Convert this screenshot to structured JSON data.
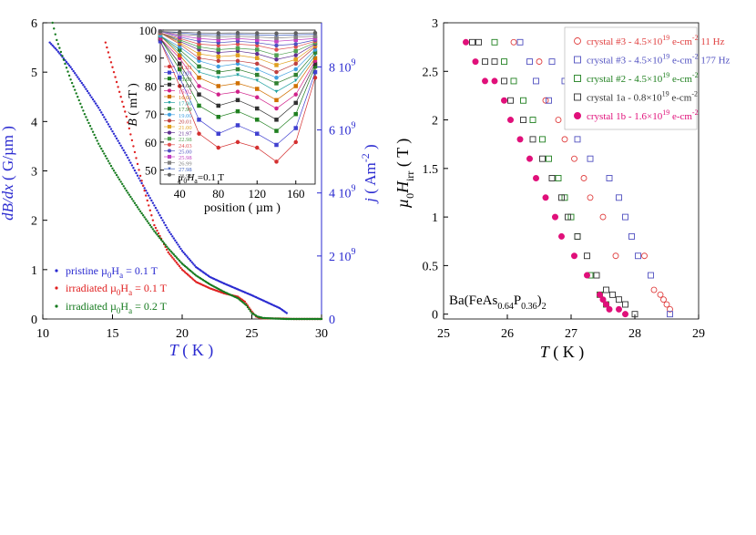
{
  "chart_data": [
    {
      "type": "scatter",
      "title": "",
      "xlabel": "T ( K )",
      "ylabel_left": "dB/dx ( G/µm )",
      "ylabel_right": "j ( Am^-2 )",
      "xlim": [
        10,
        30
      ],
      "ylim_left": [
        0,
        6
      ],
      "ylim_right": [
        0,
        9400000000.0
      ],
      "xticks": [
        "10",
        "15",
        "20",
        "25",
        "30"
      ],
      "yticks_left": [
        "0",
        "1",
        "2",
        "3",
        "4",
        "5",
        "6"
      ],
      "yticks_right": [
        {
          "base": "0",
          "exp": ""
        },
        {
          "base": "2 10",
          "exp": "9"
        },
        {
          "base": "4 10",
          "exp": "9"
        },
        {
          "base": "6 10",
          "exp": "9"
        },
        {
          "base": "8 10",
          "exp": "9"
        }
      ],
      "legend_position": "bottom-left",
      "series": [
        {
          "name": "pristine µ0Ha = 0.1 T",
          "color": "#2a2ad0",
          "x": [
            10.5,
            11,
            12,
            13,
            14,
            15,
            16,
            17,
            18,
            19,
            20,
            21,
            22,
            23,
            24,
            25,
            26,
            27,
            27.5
          ],
          "y": [
            5.6,
            5.45,
            5.1,
            4.7,
            4.28,
            3.8,
            3.32,
            2.8,
            2.3,
            1.8,
            1.38,
            1.05,
            0.85,
            0.72,
            0.6,
            0.48,
            0.35,
            0.22,
            0.12
          ]
        },
        {
          "name": "irradiated µ0Ha = 0.1 T",
          "color": "#e02020",
          "x": [
            14.5,
            15,
            16,
            17,
            18,
            19,
            20,
            21,
            22,
            23,
            24,
            24.5,
            25,
            25.3,
            25.6,
            26,
            27,
            28,
            29,
            30
          ],
          "y": [
            5.6,
            5.1,
            4.1,
            2.9,
            1.9,
            1.35,
            1.0,
            0.75,
            0.62,
            0.52,
            0.45,
            0.35,
            0.15,
            0.05,
            0.02,
            0.01,
            0.01,
            0.0,
            0.0,
            0.0
          ]
        },
        {
          "name": "irradiated µ0Ha = 0.2 T",
          "color": "#157a1e",
          "x": [
            10.7,
            11,
            12,
            13,
            14,
            15,
            16,
            17,
            18,
            19,
            20,
            21,
            22,
            23,
            24,
            24.6,
            25,
            25.4,
            25.8,
            26.5,
            27.5,
            28.5,
            30
          ],
          "y": [
            6.0,
            5.65,
            4.85,
            4.15,
            3.55,
            3.05,
            2.6,
            2.18,
            1.78,
            1.43,
            1.12,
            0.88,
            0.7,
            0.55,
            0.42,
            0.28,
            0.12,
            0.05,
            0.02,
            0.01,
            0.0,
            0.0,
            0.0
          ]
        }
      ]
    },
    {
      "type": "line",
      "title": "",
      "xlabel": "position ( µm )",
      "ylabel": "B ( mT )",
      "annotation": "µ0Ha=0.1 T",
      "xlim": [
        20,
        180
      ],
      "ylim": [
        45,
        100
      ],
      "xticks": [
        "40",
        "80",
        "120",
        "160"
      ],
      "yticks": [
        "50",
        "60",
        "70",
        "80",
        "90",
        "100"
      ],
      "x": [
        20,
        40,
        60,
        80,
        100,
        120,
        140,
        160,
        180
      ],
      "series": [
        {
          "name": "11.03",
          "color": "#d43030",
          "marker": "o",
          "values": [
            96,
            80,
            63,
            58,
            60,
            58,
            53,
            60,
            83
          ]
        },
        {
          "name": "12.03",
          "color": "#4040d0",
          "marker": "s",
          "values": [
            96,
            83,
            68,
            63,
            66,
            63,
            59,
            65,
            85
          ]
        },
        {
          "name": "13.03",
          "color": "#208020",
          "marker": "s",
          "values": [
            97,
            86,
            73,
            69,
            71,
            68,
            64,
            70,
            87
          ]
        },
        {
          "name": "14.04",
          "color": "#303030",
          "marker": "s",
          "values": [
            97,
            88,
            77,
            73,
            75,
            72,
            68,
            74,
            88
          ]
        },
        {
          "name": "15.02",
          "color": "#d0208a",
          "marker": "o",
          "values": [
            97,
            90,
            80,
            77,
            78,
            76,
            72,
            77,
            89
          ]
        },
        {
          "name": "16.01",
          "color": "#d07000",
          "marker": "s",
          "values": [
            98,
            91,
            83,
            80,
            81,
            79,
            75,
            80,
            90
          ]
        },
        {
          "name": "17.00",
          "color": "#20a0a0",
          "marker": "v",
          "values": [
            98,
            92,
            85,
            83,
            84,
            82,
            78,
            82,
            91
          ]
        },
        {
          "name": "17.99",
          "color": "#308030",
          "marker": "s",
          "values": [
            98,
            93,
            87,
            85,
            86,
            84,
            81,
            84,
            92
          ]
        },
        {
          "name": "19.00",
          "color": "#40a0e0",
          "marker": "o",
          "values": [
            98,
            94,
            89,
            87,
            88,
            86,
            83,
            86,
            93
          ]
        },
        {
          "name": "20.01",
          "color": "#c04040",
          "marker": "o",
          "values": [
            99,
            95,
            90,
            89,
            89,
            88,
            85,
            88,
            94
          ]
        },
        {
          "name": "21.00",
          "color": "#e0a020",
          "marker": "s",
          "values": [
            99,
            95.5,
            91.5,
            90.5,
            91,
            90,
            87.5,
            89.5,
            94.5
          ]
        },
        {
          "name": "21.97",
          "color": "#603090",
          "marker": "o",
          "values": [
            99,
            96,
            93,
            92,
            92.5,
            91.5,
            89.5,
            91,
            95
          ]
        },
        {
          "name": "22.98",
          "color": "#50a050",
          "marker": "s",
          "values": [
            99,
            96.5,
            94,
            93,
            93.5,
            93,
            91,
            92.5,
            95.5
          ]
        },
        {
          "name": "24.03",
          "color": "#e05050",
          "marker": "o",
          "values": [
            99,
            97,
            95,
            94.5,
            95,
            94.5,
            93,
            94,
            96
          ]
        },
        {
          "name": "25.00",
          "color": "#5050c0",
          "marker": "o",
          "values": [
            99.5,
            97.5,
            96,
            95.5,
            96,
            95.5,
            94.5,
            95,
            96.5
          ]
        },
        {
          "name": "25.98",
          "color": "#c040c0",
          "marker": "s",
          "values": [
            99.5,
            98,
            97,
            96.5,
            97,
            96.5,
            96,
            96.5,
            97
          ]
        },
        {
          "name": "26.99",
          "color": "#808080",
          "marker": "s",
          "values": [
            99.5,
            98.5,
            98,
            97.5,
            97.8,
            97.5,
            97.2,
            97.5,
            97.8
          ]
        },
        {
          "name": "27.98",
          "color": "#4060c0",
          "marker": "v",
          "values": [
            99.5,
            99,
            98.5,
            98.3,
            98.5,
            98.3,
            98.1,
            98.3,
            98.5
          ]
        },
        {
          "name": "28.98",
          "color": "#606060",
          "marker": "o",
          "values": [
            99.5,
            99.2,
            99,
            98.9,
            99,
            98.9,
            98.8,
            98.9,
            99
          ]
        }
      ]
    },
    {
      "type": "scatter",
      "title": "",
      "xlabel": "T ( K )",
      "ylabel": "µ0Hirr ( T )",
      "xlim": [
        25,
        29
      ],
      "ylim": [
        -0.05,
        3
      ],
      "xticks": [
        "25",
        "26",
        "27",
        "28",
        "29"
      ],
      "yticks": [
        "0",
        "0.5",
        "1",
        "1.5",
        "2",
        "2.5",
        "3"
      ],
      "annotation": {
        "base": "Ba(FeAs",
        "sub1": "0.64",
        "mid": "P",
        "sub2": "0.36",
        "end": ")",
        "sub3": "2"
      },
      "legend_position": "top-right",
      "series": [
        {
          "name": "crystal #3 -  4.5×10^19 e-cm^-2 11 Hz",
          "color": "#e04040",
          "marker": "open-circle",
          "x": [
            28.55,
            28.5,
            28.45,
            28.4,
            28.3,
            28.15,
            27.7,
            27.5,
            27.3,
            27.2,
            27.05,
            26.9,
            26.8,
            26.6,
            26.5,
            26.1
          ],
          "y": [
            0.05,
            0.1,
            0.15,
            0.2,
            0.25,
            0.6,
            0.6,
            1.0,
            1.2,
            1.4,
            1.6,
            1.8,
            2.0,
            2.2,
            2.6,
            2.8
          ]
        },
        {
          "name": "crystal #3 - 4.5×10^19 e-cm^-2  177 Hz",
          "color": "#5050c0",
          "marker": "open-square",
          "x": [
            28.55,
            28.25,
            28.05,
            27.95,
            27.85,
            27.75,
            27.6,
            27.3,
            27.1,
            27.05,
            27.0,
            26.9,
            26.7,
            26.65,
            26.45,
            26.35,
            26.2
          ],
          "y": [
            0.0,
            0.4,
            0.6,
            0.8,
            1.0,
            1.2,
            1.4,
            1.6,
            1.8,
            2.0,
            2.2,
            2.4,
            2.6,
            2.2,
            2.4,
            2.6,
            2.8
          ]
        },
        {
          "name": "crystal #2 - 4.5×10^19 e-cm^-2",
          "color": "#208020",
          "marker": "open-square",
          "x": [
            27.55,
            27.45,
            27.3,
            27.1,
            27.0,
            26.9,
            26.8,
            26.65,
            26.55,
            26.4,
            26.25,
            26.1,
            25.95,
            25.8
          ],
          "y": [
            0.1,
            0.2,
            0.4,
            0.8,
            1.0,
            1.2,
            1.4,
            1.6,
            1.8,
            2.0,
            2.2,
            2.4,
            2.6,
            2.8
          ]
        },
        {
          "name": "crystal 1a - 0.8×10^19 e-cm^-2",
          "color": "#303030",
          "marker": "open-square",
          "x": [
            28.0,
            27.85,
            27.75,
            27.65,
            27.55,
            27.4,
            27.25,
            27.1,
            26.95,
            26.85,
            26.7,
            26.55,
            26.4,
            26.25,
            26.05,
            25.95,
            25.8,
            25.65,
            25.55,
            25.45
          ],
          "y": [
            0.0,
            0.1,
            0.15,
            0.2,
            0.25,
            0.4,
            0.6,
            0.8,
            1.0,
            1.2,
            1.4,
            1.6,
            1.8,
            2.0,
            2.2,
            2.4,
            2.6,
            2.6,
            2.8,
            2.8
          ]
        },
        {
          "name": "crystal 1b - 1.6×10^19 e-cm^-2",
          "color": "#e0107a",
          "marker": "filled-circle",
          "x": [
            27.85,
            27.75,
            27.6,
            27.55,
            27.5,
            27.45,
            27.25,
            27.05,
            26.85,
            26.75,
            26.6,
            26.45,
            26.35,
            26.2,
            26.05,
            25.95,
            25.8,
            25.65,
            25.5,
            25.35
          ],
          "y": [
            0.0,
            0.05,
            0.05,
            0.1,
            0.15,
            0.2,
            0.4,
            0.6,
            0.8,
            1.0,
            1.2,
            1.4,
            1.6,
            1.8,
            2.0,
            2.2,
            2.4,
            2.4,
            2.6,
            2.8
          ]
        }
      ]
    }
  ]
}
